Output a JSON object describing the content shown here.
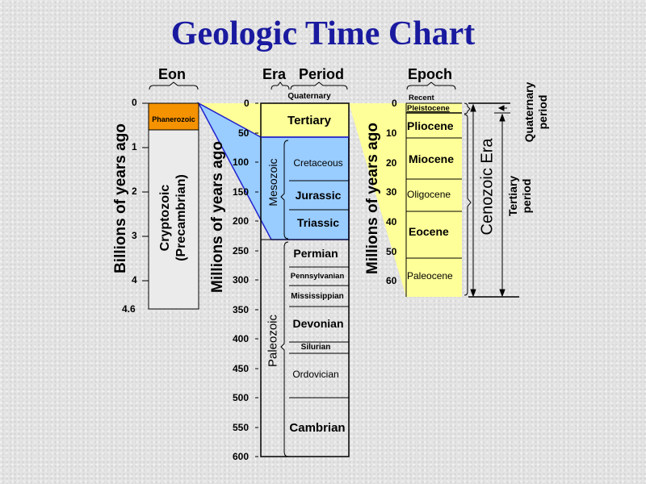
{
  "title": "Geologic Time Chart",
  "colors": {
    "title": "#1a1aa0",
    "phanerozoic": "#f59200",
    "cryptozoic": "#ebebeb",
    "mesozoic": "#99ccff",
    "cenozoic": "#ffff99",
    "wedge_outline": "#2222cc"
  },
  "eon": {
    "header": "Eon",
    "axis_label": "Billions of years ago",
    "ticks": [
      "0",
      "1",
      "2",
      "3",
      "4",
      "4.6"
    ],
    "phanerozoic": "Phanerozoic",
    "cryptozoic_line1": "Cryptozoic",
    "cryptozoic_line2": "(Precambrian)"
  },
  "era_period": {
    "era_header": "Era",
    "period_header": "Period",
    "axis_label": "Millions of years ago",
    "ticks": [
      "0",
      "50",
      "100",
      "150",
      "200",
      "250",
      "300",
      "350",
      "400",
      "450",
      "500",
      "550",
      "600"
    ],
    "quaternary": "Quaternary",
    "tertiary": "Tertiary",
    "mesozoic": "Mesozoic",
    "paleozoic": "Paleozoic",
    "periods": [
      "Cretaceous",
      "Jurassic",
      "Triassic",
      "Permian",
      "Pennsylvanian",
      "Mississippian",
      "Devonian",
      "Silurian",
      "Ordovician",
      "Cambrian"
    ]
  },
  "epoch": {
    "header": "Epoch",
    "axis_label": "Millions of years ago",
    "ticks": [
      "0",
      "10",
      "20",
      "30",
      "40",
      "50",
      "60"
    ],
    "epochs": [
      "Recent",
      "Pleistocene",
      "Pliocene",
      "Miocene",
      "Oligocene",
      "Eocene",
      "Paleocene"
    ],
    "cenozoic_era": "Cenozoic Era",
    "quaternary_period_1": "Quaternary",
    "quaternary_period_2": "period",
    "tertiary_period_1": "Tertiary",
    "tertiary_period_2": "period"
  }
}
